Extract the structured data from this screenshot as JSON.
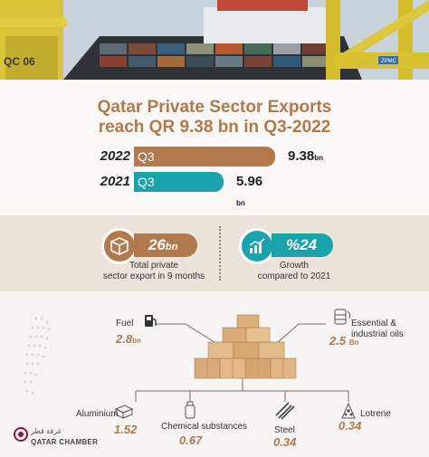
{
  "hero": {
    "crane_label": "QC 06",
    "ship_label": "ZPMC"
  },
  "title": {
    "line1": "Qatar Private Sector Exports",
    "line2": "reach QR 9.38 bn in Q3-2022"
  },
  "chart_data": {
    "type": "bar",
    "categories": [
      "2022",
      "2021"
    ],
    "bar_labels": [
      "Q3",
      "Q3"
    ],
    "values": [
      9.38,
      5.96
    ],
    "value_labels": [
      "9.38",
      "5.96"
    ],
    "unit_labels": [
      "bn",
      "bn"
    ],
    "colors": [
      "#b07a4c",
      "#1aa3ad"
    ],
    "xlim": [
      0,
      9.38
    ],
    "title": "Qatar Private Sector Exports reach QR 9.38 bn in Q3-2022"
  },
  "stats": {
    "total": {
      "value": "26",
      "unit": "bn",
      "caption1": "Total private",
      "caption2": "sector export in 9 months"
    },
    "growth": {
      "value": "%24",
      "caption1": "Growth",
      "caption2": "compared to 2021"
    }
  },
  "products": {
    "fuel": {
      "label": "Fuel",
      "value": "2.8",
      "unit": "bn"
    },
    "oils": {
      "label1": "Essential &",
      "label2": "industrial oils",
      "value": "2.5",
      "unit": "Bn"
    },
    "aluminium": {
      "label": "Aluminium",
      "value": "1.52"
    },
    "chemical": {
      "label": "Chemical substances",
      "value": "0.67"
    },
    "steel": {
      "label": "Steel",
      "value": "0.34"
    },
    "lotrene": {
      "label": "Lotrene",
      "value": "0.34"
    }
  },
  "brand": {
    "arabic": "غرفة قطر",
    "english": "QATAR CHAMBER"
  },
  "colors": {
    "accent": "#b07a4c",
    "teal": "#1aa3ad",
    "band": "#ece3db"
  }
}
